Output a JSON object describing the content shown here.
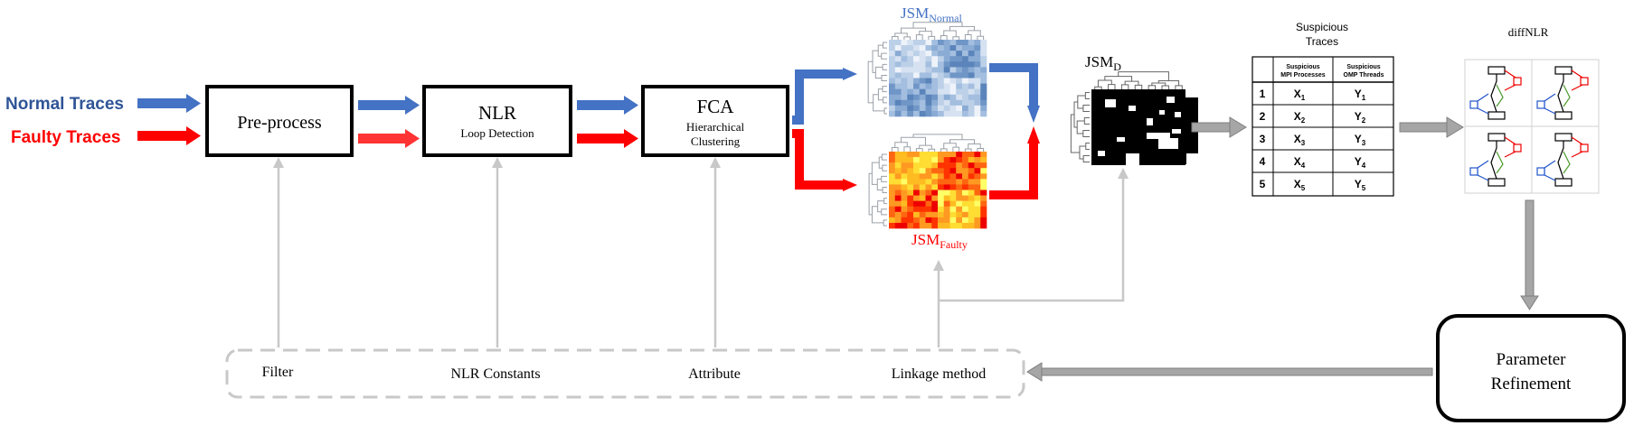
{
  "inputs": {
    "normal": "Normal Traces",
    "faulty": "Faulty Traces"
  },
  "stages": {
    "preprocess": {
      "title": "Pre-process"
    },
    "nlr": {
      "title": "NLR",
      "subtitle": "Loop Detection"
    },
    "fca": {
      "title": "FCA",
      "subtitle_line1": "Hierarchical",
      "subtitle_line2": "Clustering"
    }
  },
  "jsm": {
    "normal_base": "JSM",
    "normal_sub": "Normal",
    "faulty_base": "JSM",
    "faulty_sub": "Faulty",
    "diff_base": "JSM",
    "diff_sub": "D"
  },
  "suspicious": {
    "title_line1": "Suspicious",
    "title_line2": "Traces",
    "col1_line1": "Suspicious",
    "col1_line2": "MPI Processes",
    "col2_line1": "Suspicious",
    "col2_line2": "OMP Threads",
    "rows": [
      {
        "n": "1",
        "x": "X",
        "xs": "1",
        "y": "Y",
        "ys": "1"
      },
      {
        "n": "2",
        "x": "X",
        "xs": "2",
        "y": "Y",
        "ys": "2"
      },
      {
        "n": "3",
        "x": "X",
        "xs": "3",
        "y": "Y",
        "ys": "3"
      },
      {
        "n": "4",
        "x": "X",
        "xs": "4",
        "y": "Y",
        "ys": "4"
      },
      {
        "n": "5",
        "x": "X",
        "xs": "5",
        "y": "Y",
        "ys": "5"
      }
    ]
  },
  "diffnlr": {
    "title": "diffNLR"
  },
  "refinement": {
    "line1": "Parameter",
    "line2": "Refinement"
  },
  "parameters": {
    "filter": "Filter",
    "nlr_constants": "NLR Constants",
    "attribute": "Attribute",
    "linkage": "Linkage method"
  },
  "colors": {
    "normal": "#4472c4",
    "normal_text": "#2f5597",
    "faulty": "#ff0000",
    "feedback": "#c8c8c8",
    "gray_arrow": "#a6a6a6"
  }
}
